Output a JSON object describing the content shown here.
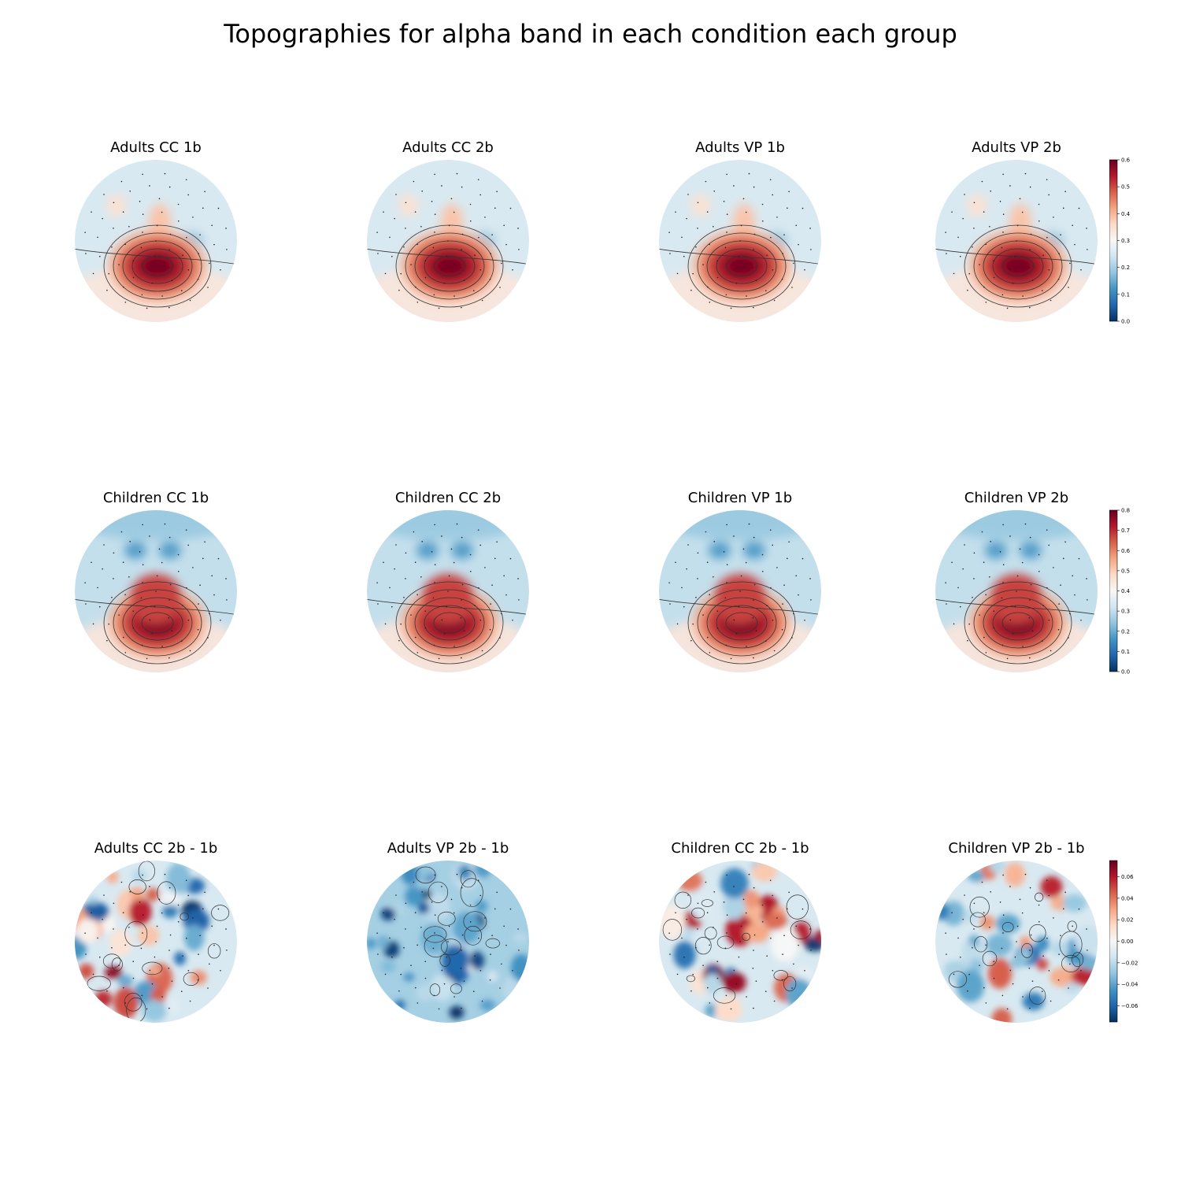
{
  "title": "Topographies for alpha band in each condition each group",
  "colors": {
    "low": "#053061",
    "mid": "#f7f7f7",
    "high": "#67001f",
    "contour": "#333333"
  },
  "chart_data": [
    {
      "type": "heatmap",
      "row": 0,
      "colormap": "RdBu_r",
      "colorbar": {
        "min": 0.0,
        "max": 0.6,
        "ticks": [
          "0.0",
          "0.1",
          "0.2",
          "0.3",
          "0.4",
          "0.5",
          "0.6"
        ]
      },
      "panels": [
        {
          "title": "Adults CC 1b",
          "peak": 0.6
        },
        {
          "title": "Adults CC 2b",
          "peak": 0.6
        },
        {
          "title": "Adults VP 1b",
          "peak": 0.6
        },
        {
          "title": "Adults VP 2b",
          "peak": 0.6
        }
      ]
    },
    {
      "type": "heatmap",
      "row": 1,
      "colormap": "RdBu_r",
      "colorbar": {
        "min": 0.0,
        "max": 0.8,
        "ticks": [
          "0.0",
          "0.1",
          "0.2",
          "0.3",
          "0.4",
          "0.5",
          "0.6",
          "0.7",
          "0.8"
        ]
      },
      "panels": [
        {
          "title": "Children CC 1b",
          "peak": 0.8
        },
        {
          "title": "Children CC 2b",
          "peak": 0.8
        },
        {
          "title": "Children VP 1b",
          "peak": 0.8
        },
        {
          "title": "Children VP 2b",
          "peak": 0.8
        }
      ]
    },
    {
      "type": "heatmap",
      "row": 2,
      "colormap": "RdBu_r",
      "colorbar": {
        "min": -0.075,
        "max": 0.075,
        "ticks": [
          "−0.06",
          "−0.04",
          "−0.02",
          "0.00",
          "0.02",
          "0.04",
          "0.06"
        ]
      },
      "panels": [
        {
          "title": "Adults CC 2b - 1b"
        },
        {
          "title": "Adults VP 2b - 1b"
        },
        {
          "title": "Children CC 2b - 1b"
        },
        {
          "title": "Children VP 2b - 1b"
        }
      ]
    }
  ]
}
